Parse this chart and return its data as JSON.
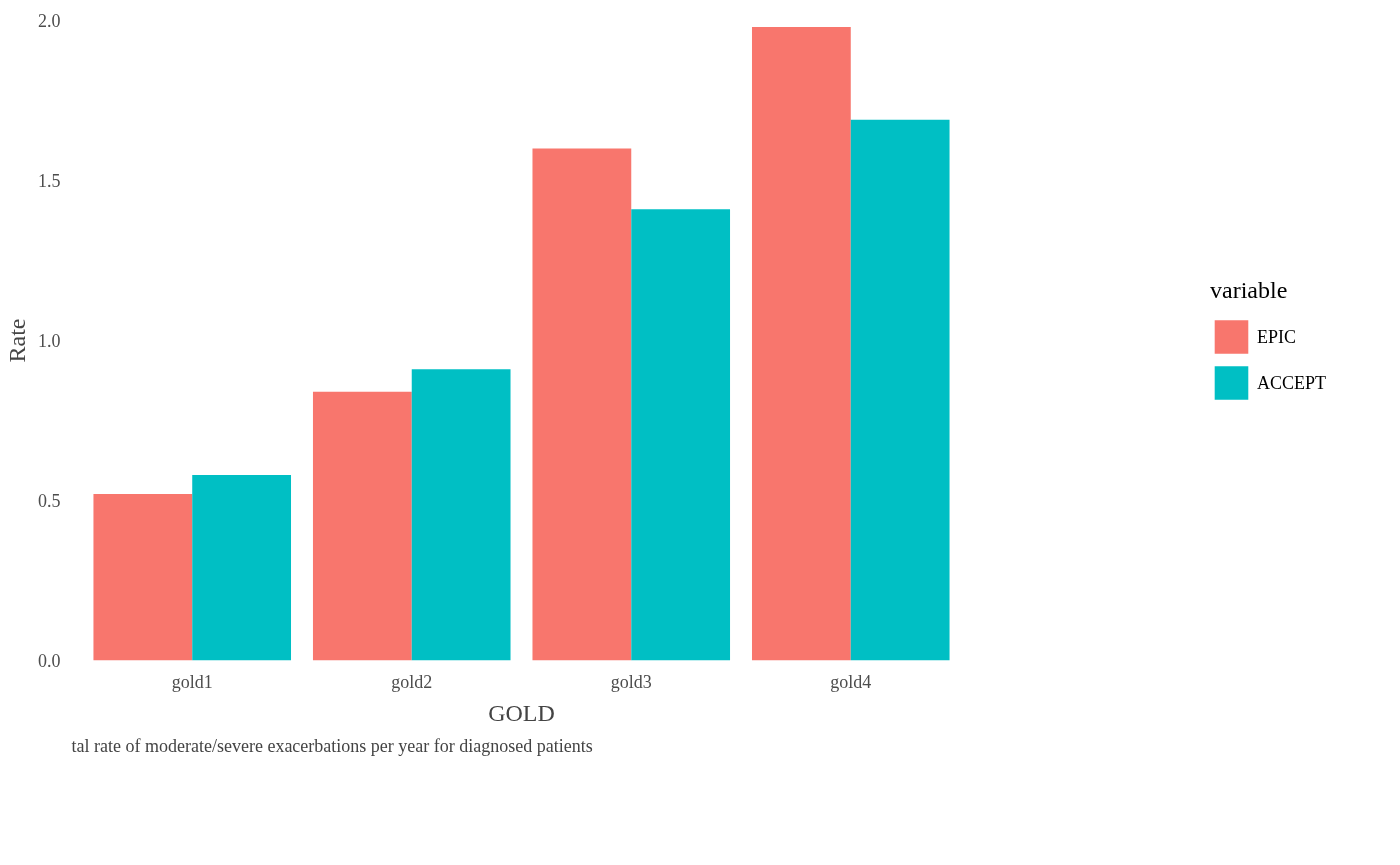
{
  "chart_data": {
    "type": "bar",
    "xlabel": "GOLD",
    "ylabel": "Rate",
    "legend_title": "variable",
    "categories": [
      "gold1",
      "gold2",
      "gold3",
      "gold4"
    ],
    "series": [
      {
        "name": "EPIC",
        "color": "#f8766d",
        "values": [
          0.52,
          0.84,
          1.6,
          1.98
        ]
      },
      {
        "name": "ACCEPT",
        "color": "#00bfc4",
        "values": [
          0.58,
          0.91,
          1.41,
          1.69
        ]
      }
    ],
    "ylim": [
      0,
      2
    ],
    "yticks": [
      {
        "value": 0,
        "label": "0.0"
      },
      0.5,
      {
        "value": 1,
        "label": "1.0"
      },
      1.5,
      {
        "value": 2,
        "label": "2.0"
      }
    ],
    "grid": false,
    "legend": "right",
    "annotations": [
      "tal rate of moderate/severe exacerbations per year for diagnosed patients"
    ]
  }
}
